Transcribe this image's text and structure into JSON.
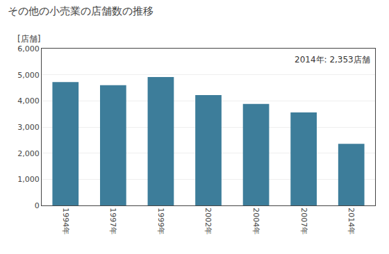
{
  "chart_data": {
    "type": "bar",
    "title": "その他の小売業の店舗数の推移",
    "ylabel": "[店舗]",
    "annotation": "2014年: 2,353店舗",
    "categories": [
      "1994年",
      "1997年",
      "1999年",
      "2002年",
      "2004年",
      "2007年",
      "2014年"
    ],
    "values": [
      4720,
      4600,
      4910,
      4220,
      3880,
      3560,
      2353
    ],
    "color": "#3d7d9a",
    "ylim": [
      0,
      6000
    ],
    "yticks": [
      0,
      {
        "value": 1000,
        "label": "1,000"
      },
      {
        "value": 2000,
        "label": "2,000"
      },
      {
        "value": 3000,
        "label": "3,000"
      },
      {
        "value": 4000,
        "label": "4,000"
      },
      {
        "value": 5000,
        "label": "5,000"
      },
      {
        "value": 6000,
        "label": "6,000"
      }
    ],
    "grid": true
  }
}
